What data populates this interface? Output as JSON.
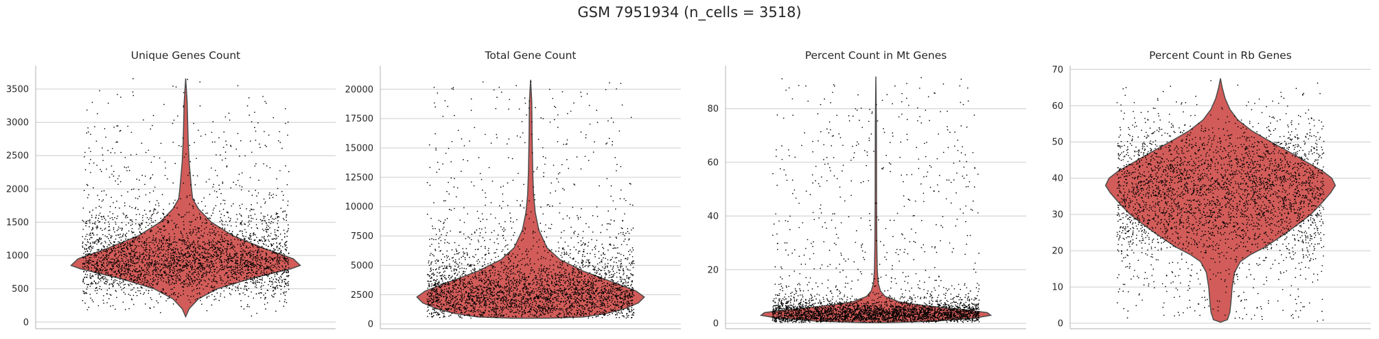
{
  "figure_title": "GSM 7951934 (n_cells = 3518)",
  "colors": {
    "violin_fill": "#d25c59",
    "violin_edge": "#4a4a4a",
    "points": "#000000",
    "grid": "#cccccc"
  },
  "chart_data": [
    {
      "type": "violin",
      "title": "Unique Genes Count",
      "n_points": 3518,
      "ylim": [
        -100,
        3850
      ],
      "yticks": [
        0,
        500,
        1000,
        1500,
        2000,
        2500,
        3000,
        3500
      ],
      "ytick_labels": [
        "0",
        "500",
        "1000",
        "1500",
        "2000",
        "2500",
        "3000",
        "3500"
      ],
      "grid": true,
      "density": {
        "y": [
          80,
          200,
          350,
          500,
          650,
          800,
          850,
          950,
          1100,
          1300,
          1500,
          1700,
          1850,
          2000,
          2200,
          2400,
          2700,
          3000,
          3300,
          3660
        ],
        "half_width": [
          0.0,
          0.03,
          0.11,
          0.27,
          0.55,
          0.9,
          0.98,
          0.92,
          0.68,
          0.4,
          0.22,
          0.11,
          0.06,
          0.05,
          0.04,
          0.03,
          0.022,
          0.017,
          0.013,
          0.0
        ]
      },
      "points_summary": {
        "bulk_range": [
          250,
          1500
        ],
        "median": 860,
        "max": 3660
      }
    },
    {
      "type": "violin",
      "title": "Total Gene Count",
      "n_points": 3518,
      "ylim": [
        -400,
        22000
      ],
      "yticks": [
        0,
        2500,
        5000,
        7500,
        10000,
        12500,
        15000,
        17500,
        20000
      ],
      "ytick_labels": [
        "0",
        "2500",
        "5000",
        "7500",
        "10000",
        "12500",
        "15000",
        "17500",
        "20000"
      ],
      "grid": true,
      "density": {
        "y": [
          500,
          600,
          900,
          1300,
          1800,
          2300,
          2800,
          3500,
          4500,
          5500,
          6500,
          8000,
          9500,
          11000,
          13000,
          16000,
          19000,
          20800
        ],
        "half_width": [
          0.15,
          0.45,
          0.65,
          0.8,
          0.92,
          0.97,
          0.9,
          0.72,
          0.45,
          0.25,
          0.14,
          0.07,
          0.04,
          0.025,
          0.018,
          0.013,
          0.01,
          0.0
        ]
      },
      "points_summary": {
        "bulk_range": [
          400,
          6500
        ],
        "median": 2200,
        "max": 20800
      }
    },
    {
      "type": "violin",
      "title": "Percent Count in Mt Genes",
      "n_points": 3518,
      "ylim": [
        -2,
        96
      ],
      "yticks": [
        0,
        20,
        40,
        60,
        80
      ],
      "ytick_labels": [
        "0",
        "20",
        "40",
        "60",
        "80"
      ],
      "grid": true,
      "density": {
        "y": [
          0.3,
          0.8,
          2,
          3,
          4,
          5,
          6,
          7,
          8,
          10,
          12,
          15,
          20,
          30,
          45,
          60,
          75,
          92
        ],
        "half_width": [
          0.1,
          0.5,
          0.85,
          0.98,
          0.95,
          0.78,
          0.55,
          0.35,
          0.2,
          0.08,
          0.04,
          0.02,
          0.012,
          0.008,
          0.006,
          0.005,
          0.004,
          0.0
        ]
      },
      "points_summary": {
        "bulk_range": [
          0,
          14
        ],
        "median": 3,
        "max": 92
      }
    },
    {
      "type": "violin",
      "title": "Percent Count in Rb Genes",
      "n_points": 3518,
      "ylim": [
        -1.5,
        71
      ],
      "yticks": [
        0,
        10,
        20,
        30,
        40,
        50,
        60,
        70
      ],
      "ytick_labels": [
        "0",
        "10",
        "20",
        "30",
        "40",
        "50",
        "60",
        "70"
      ],
      "grid": true,
      "density": {
        "y": [
          0.3,
          1,
          3,
          6,
          10,
          14,
          17,
          19,
          21,
          24,
          27,
          30,
          33,
          36,
          38,
          40,
          42,
          44,
          47,
          50,
          53,
          56,
          59,
          62,
          65,
          67.5
        ],
        "half_width": [
          0.0,
          0.06,
          0.08,
          0.09,
          0.1,
          0.12,
          0.17,
          0.26,
          0.38,
          0.52,
          0.65,
          0.77,
          0.86,
          0.94,
          0.98,
          0.95,
          0.87,
          0.76,
          0.6,
          0.43,
          0.27,
          0.15,
          0.08,
          0.04,
          0.015,
          0.0
        ]
      },
      "points_summary": {
        "bulk_range": [
          0,
          58
        ],
        "median": 36,
        "max": 67.5
      }
    }
  ]
}
